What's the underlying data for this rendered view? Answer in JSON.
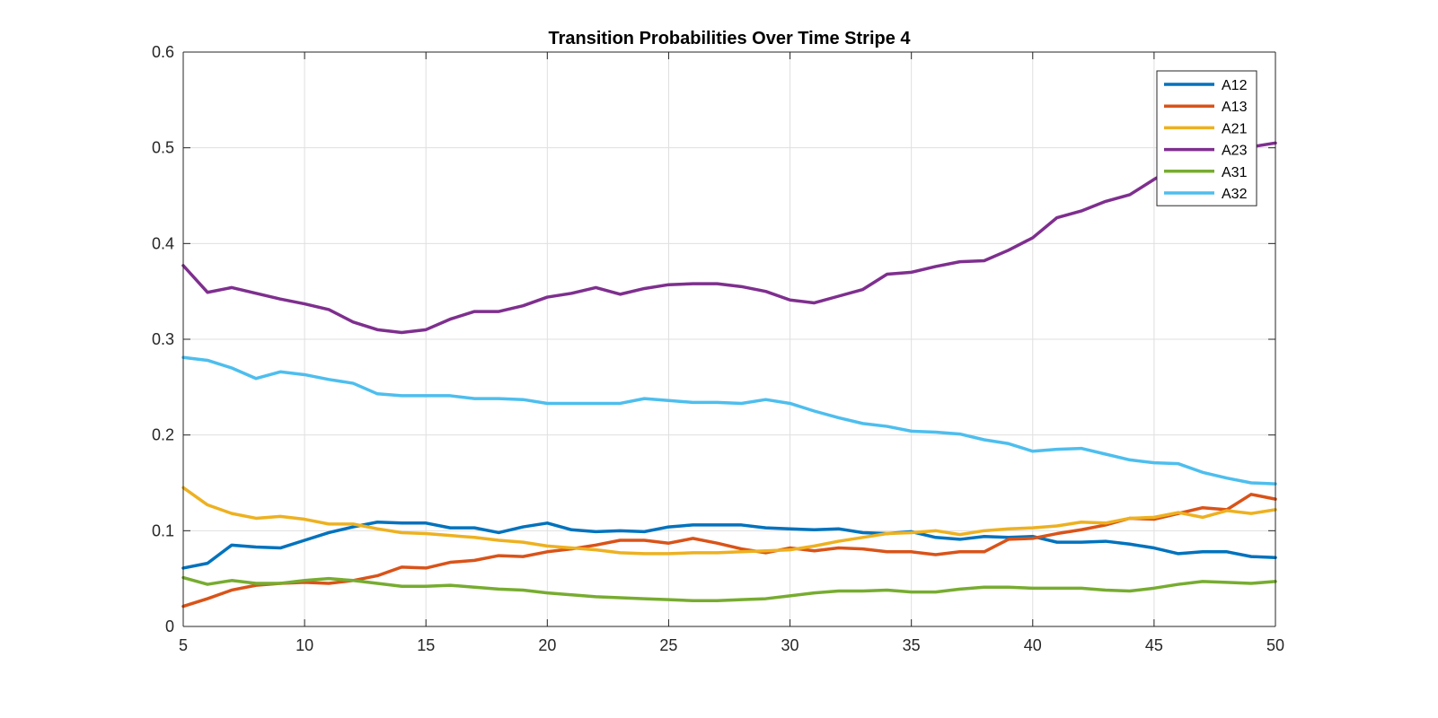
{
  "chart_data": {
    "type": "line",
    "title": "Transition Probabilities Over Time Stripe 4",
    "xlabel": "",
    "ylabel": "",
    "xlim": [
      5,
      50
    ],
    "ylim": [
      0,
      0.6
    ],
    "xticks": [
      5,
      10,
      15,
      20,
      25,
      30,
      35,
      40,
      45,
      50
    ],
    "yticks": [
      0,
      0.1,
      0.2,
      0.3,
      0.4,
      0.5,
      0.6
    ],
    "xtick_labels": [
      "5",
      "10",
      "15",
      "20",
      "25",
      "30",
      "35",
      "40",
      "45",
      "50"
    ],
    "ytick_labels": [
      "0",
      "0.1",
      "0.2",
      "0.3",
      "0.4",
      "0.5",
      "0.6"
    ],
    "grid": true,
    "legend_position": "top-right",
    "x": [
      5,
      6,
      7,
      8,
      9,
      10,
      11,
      12,
      13,
      14,
      15,
      16,
      17,
      18,
      19,
      20,
      21,
      22,
      23,
      24,
      25,
      26,
      27,
      28,
      29,
      30,
      31,
      32,
      33,
      34,
      35,
      36,
      37,
      38,
      39,
      40,
      41,
      42,
      43,
      44,
      45,
      46,
      47,
      48,
      49,
      50
    ],
    "series": [
      {
        "name": "A12",
        "color": "#0072BD",
        "values": [
          0.061,
          0.066,
          0.085,
          0.083,
          0.082,
          0.09,
          0.098,
          0.104,
          0.109,
          0.108,
          0.108,
          0.103,
          0.103,
          0.098,
          0.104,
          0.108,
          0.101,
          0.099,
          0.1,
          0.099,
          0.104,
          0.106,
          0.106,
          0.106,
          0.103,
          0.102,
          0.101,
          0.102,
          0.098,
          0.097,
          0.099,
          0.093,
          0.091,
          0.094,
          0.093,
          0.094,
          0.088,
          0.088,
          0.089,
          0.086,
          0.082,
          0.076,
          0.078,
          0.078,
          0.073,
          0.072
        ]
      },
      {
        "name": "A13",
        "color": "#D95319",
        "values": [
          0.021,
          0.029,
          0.038,
          0.043,
          0.045,
          0.046,
          0.045,
          0.048,
          0.053,
          0.062,
          0.061,
          0.067,
          0.069,
          0.074,
          0.073,
          0.078,
          0.081,
          0.085,
          0.09,
          0.09,
          0.087,
          0.092,
          0.087,
          0.081,
          0.077,
          0.082,
          0.079,
          0.082,
          0.081,
          0.078,
          0.078,
          0.075,
          0.078,
          0.078,
          0.091,
          0.092,
          0.097,
          0.101,
          0.106,
          0.113,
          0.112,
          0.118,
          0.124,
          0.122,
          0.138,
          0.133
        ]
      },
      {
        "name": "A21",
        "color": "#EDB120",
        "values": [
          0.145,
          0.127,
          0.118,
          0.113,
          0.115,
          0.112,
          0.107,
          0.107,
          0.102,
          0.098,
          0.097,
          0.095,
          0.093,
          0.09,
          0.088,
          0.084,
          0.082,
          0.08,
          0.077,
          0.076,
          0.076,
          0.077,
          0.077,
          0.078,
          0.079,
          0.08,
          0.084,
          0.089,
          0.093,
          0.097,
          0.098,
          0.1,
          0.096,
          0.1,
          0.102,
          0.103,
          0.105,
          0.109,
          0.108,
          0.113,
          0.114,
          0.119,
          0.114,
          0.121,
          0.118,
          0.122
        ]
      },
      {
        "name": "A23",
        "color": "#7E2F8E",
        "values": [
          0.377,
          0.349,
          0.354,
          0.348,
          0.342,
          0.337,
          0.331,
          0.318,
          0.31,
          0.307,
          0.31,
          0.321,
          0.329,
          0.329,
          0.335,
          0.344,
          0.348,
          0.354,
          0.347,
          0.353,
          0.357,
          0.358,
          0.358,
          0.355,
          0.35,
          0.341,
          0.338,
          0.345,
          0.352,
          0.368,
          0.37,
          0.376,
          0.381,
          0.382,
          0.393,
          0.406,
          0.427,
          0.434,
          0.444,
          0.451,
          0.467,
          0.482,
          0.49,
          0.497,
          0.501,
          0.505
        ]
      },
      {
        "name": "A31",
        "color": "#77AC30",
        "values": [
          0.051,
          0.044,
          0.048,
          0.045,
          0.045,
          0.048,
          0.05,
          0.048,
          0.045,
          0.042,
          0.042,
          0.043,
          0.041,
          0.039,
          0.038,
          0.035,
          0.033,
          0.031,
          0.03,
          0.029,
          0.028,
          0.027,
          0.027,
          0.028,
          0.029,
          0.032,
          0.035,
          0.037,
          0.037,
          0.038,
          0.036,
          0.036,
          0.039,
          0.041,
          0.041,
          0.04,
          0.04,
          0.04,
          0.038,
          0.037,
          0.04,
          0.044,
          0.047,
          0.046,
          0.045,
          0.047
        ]
      },
      {
        "name": "A32",
        "color": "#4DBEEE",
        "values": [
          0.281,
          0.278,
          0.27,
          0.259,
          0.266,
          0.263,
          0.258,
          0.254,
          0.243,
          0.241,
          0.241,
          0.241,
          0.238,
          0.238,
          0.237,
          0.233,
          0.233,
          0.233,
          0.233,
          0.238,
          0.236,
          0.234,
          0.234,
          0.233,
          0.237,
          0.233,
          0.225,
          0.218,
          0.212,
          0.209,
          0.204,
          0.203,
          0.201,
          0.195,
          0.191,
          0.183,
          0.185,
          0.186,
          0.18,
          0.174,
          0.171,
          0.17,
          0.161,
          0.155,
          0.15,
          0.149
        ]
      }
    ]
  }
}
